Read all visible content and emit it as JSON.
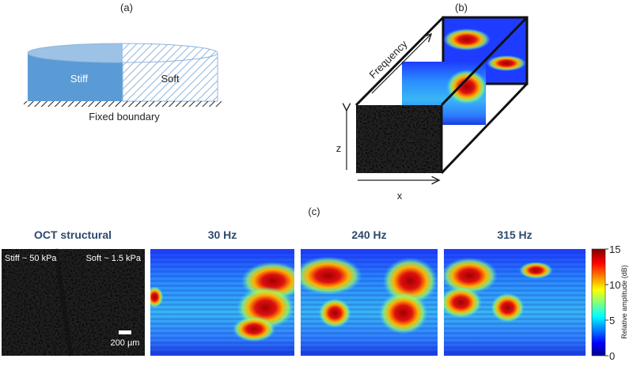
{
  "panel_a": {
    "label": "(a)",
    "stiff": "Stiff",
    "soft": "Soft",
    "boundary": "Fixed boundary"
  },
  "panel_b": {
    "label": "(b)",
    "frequency": "Frequency",
    "z": "z",
    "x": "x"
  },
  "panel_c": {
    "label": "(c)",
    "oct_title": "OCT structural",
    "stiff_note": "Stiff ~ 50 kPa",
    "soft_note": "Soft ~ 1.5 kPa",
    "scale_bar": "200 µm",
    "maps": [
      "30 Hz",
      "240 Hz",
      "315 Hz"
    ],
    "colorbar": {
      "label": "Relative amplitude (dB)",
      "lim": [
        0,
        15
      ],
      "ticks": [
        0,
        5,
        10,
        15
      ]
    }
  }
}
